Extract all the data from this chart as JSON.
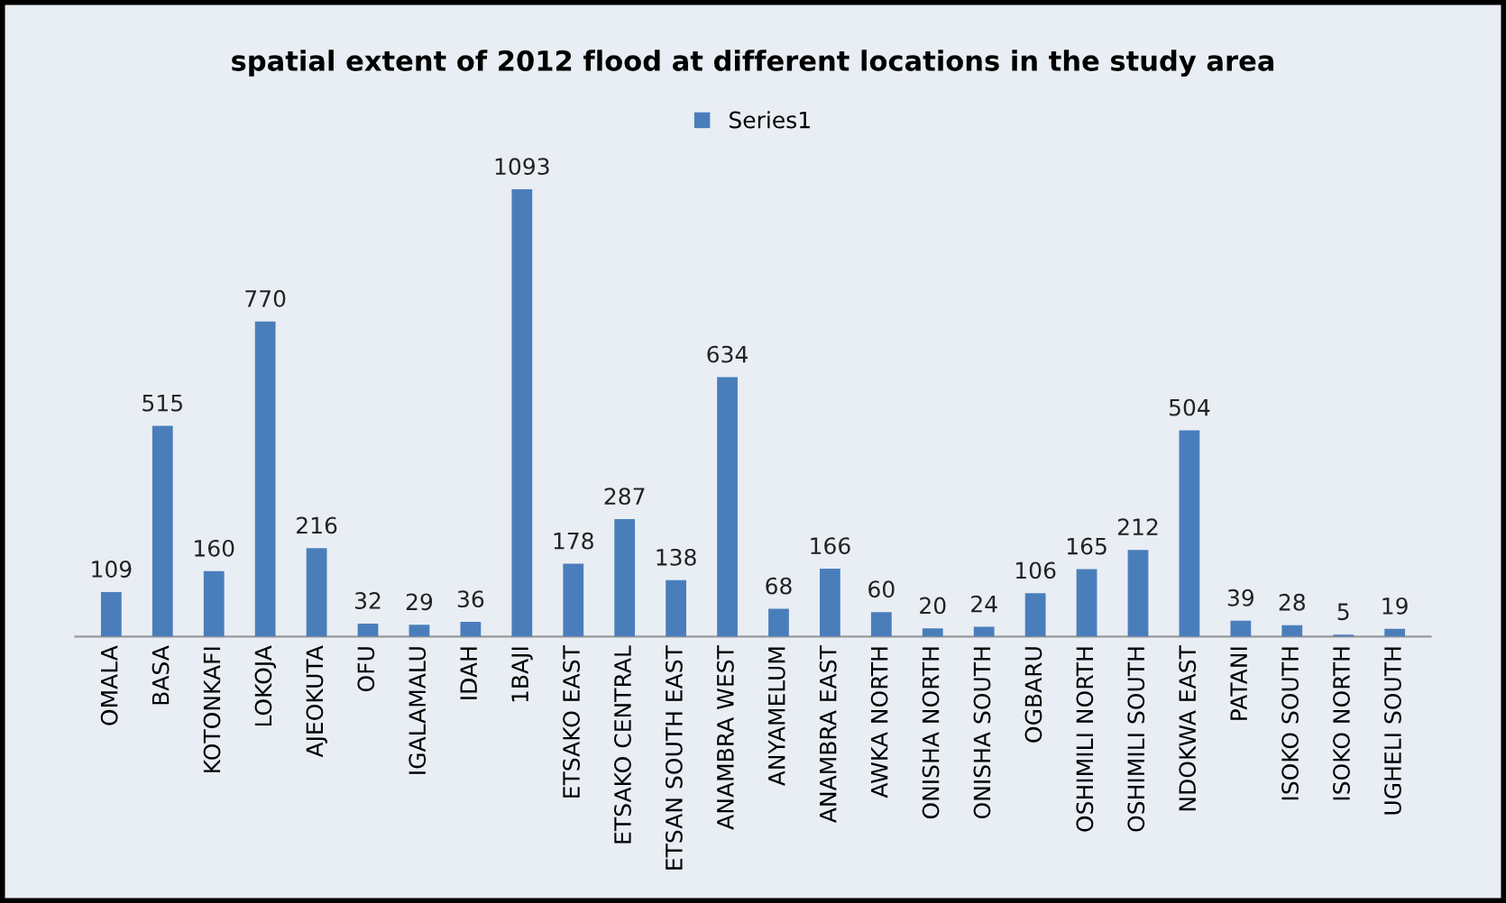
{
  "chart_data": {
    "type": "bar",
    "title": "spatial extent of 2012 flood at different locations in the study area",
    "categories": [
      "OMALA",
      "BASA",
      "KOTONKAFI",
      "LOKOJA",
      "AJEOKUTA",
      "OFU",
      "IGALAMALU",
      "IDAH",
      "1BAJI",
      "ETSAKO EAST",
      "ETSAKO CENTRAL",
      "ETSAN SOUTH EAST",
      "ANAMBRA WEST",
      "ANYAMELUM",
      "ANAMBRA EAST",
      "AWKA NORTH",
      "ONISHA NORTH",
      "ONISHA SOUTH",
      "OGBARU",
      "OSHIMILI NORTH",
      "OSHIMILI SOUTH",
      "NDOKWA EAST",
      "PATANI",
      "ISOKO SOUTH",
      "ISOKO NORTH",
      "UGHELI SOUTH"
    ],
    "series": [
      {
        "name": "Series1",
        "color": "#4a7ebb",
        "values": [
          109,
          515,
          160,
          770,
          216,
          32,
          29,
          36,
          1093,
          178,
          287,
          138,
          634,
          68,
          166,
          60,
          20,
          24,
          106,
          165,
          212,
          504,
          39,
          28,
          5,
          19
        ]
      }
    ],
    "data_labels": true,
    "legend": "top",
    "grid": false
  }
}
